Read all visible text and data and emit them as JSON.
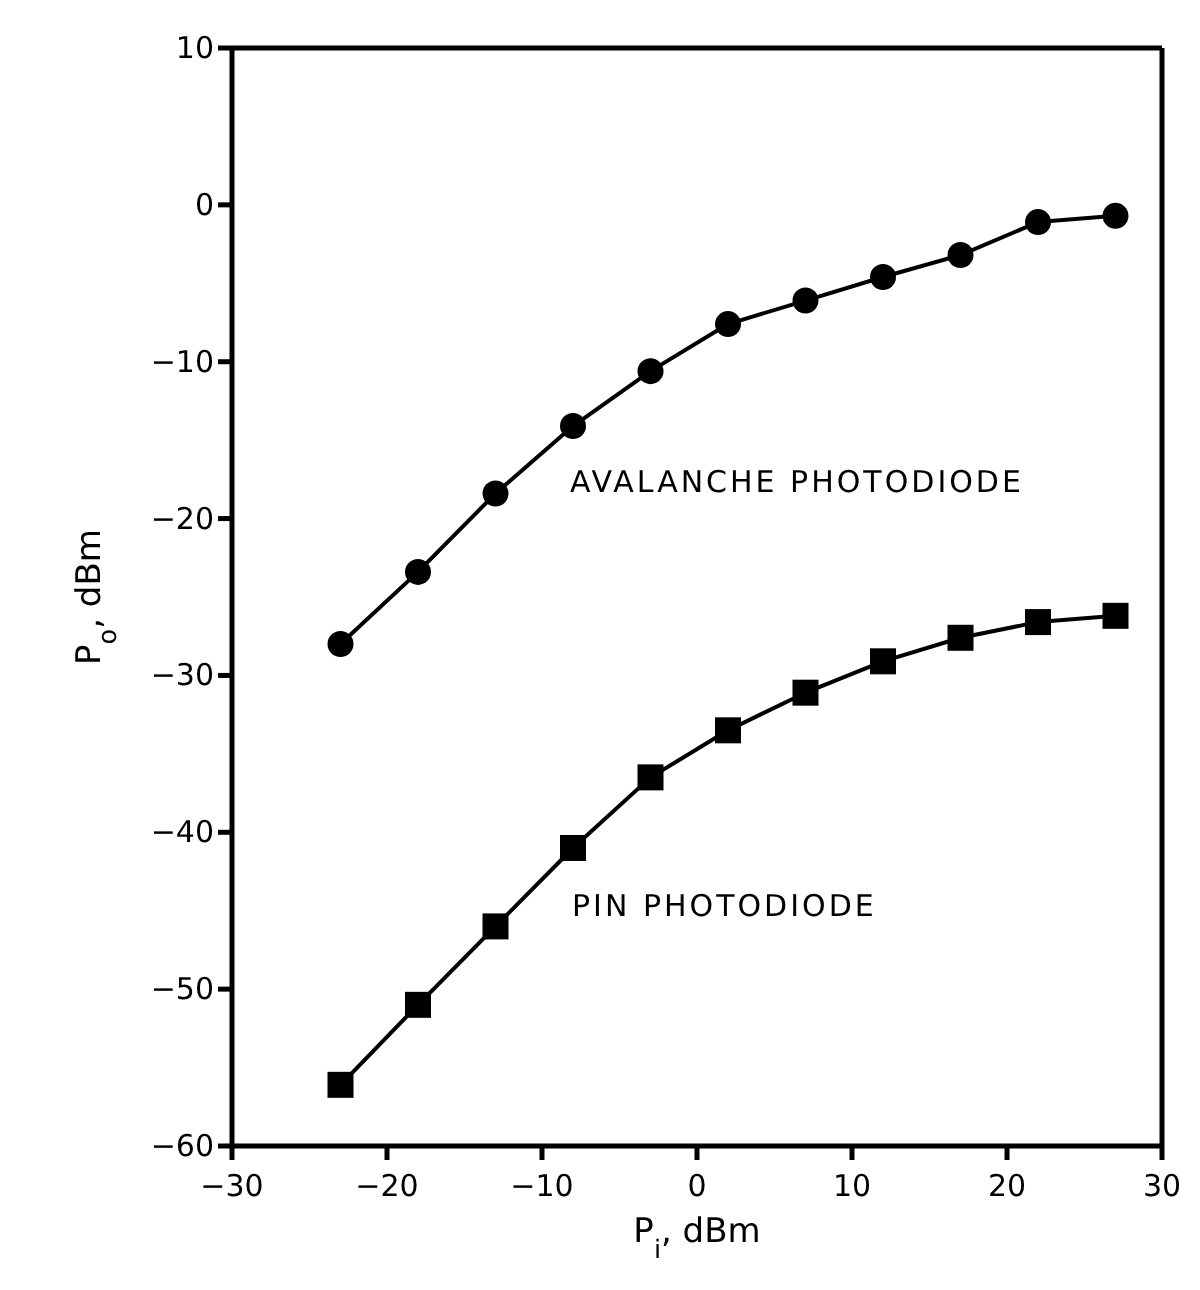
{
  "chart_data": {
    "type": "line",
    "xlabel": "P$_{i}$, dBm",
    "ylabel": "P$_{o}$, dBm",
    "x": [
      -23,
      -18,
      -13,
      -8,
      -3,
      2,
      7,
      12,
      17,
      22,
      27
    ],
    "series": [
      {
        "name": "AVALANCHE PHOTODIODE",
        "color": "#000000",
        "marker": "circle",
        "values": [
          -28,
          -23.4,
          -18.4,
          -14.1,
          -10.6,
          -7.6,
          -6.1,
          -4.6,
          -3.2,
          -1.1,
          -0.7
        ]
      },
      {
        "name": "PIN PHOTODIODE",
        "color": "#000000",
        "marker": "square",
        "values": [
          -56.1,
          -51,
          -46,
          -41,
          -36.5,
          -33.5,
          -31.1,
          -29.1,
          -27.6,
          -26.6,
          -26.2
        ]
      }
    ],
    "xlim": [
      -30,
      30
    ],
    "xticks": [
      -30,
      -20,
      -10,
      0,
      10,
      20,
      30
    ],
    "ylim": [
      -60,
      10
    ],
    "yticks": [
      -60,
      -50,
      -40,
      -30,
      -20,
      -10,
      0,
      10
    ],
    "grid": false,
    "line_style": "solid"
  }
}
